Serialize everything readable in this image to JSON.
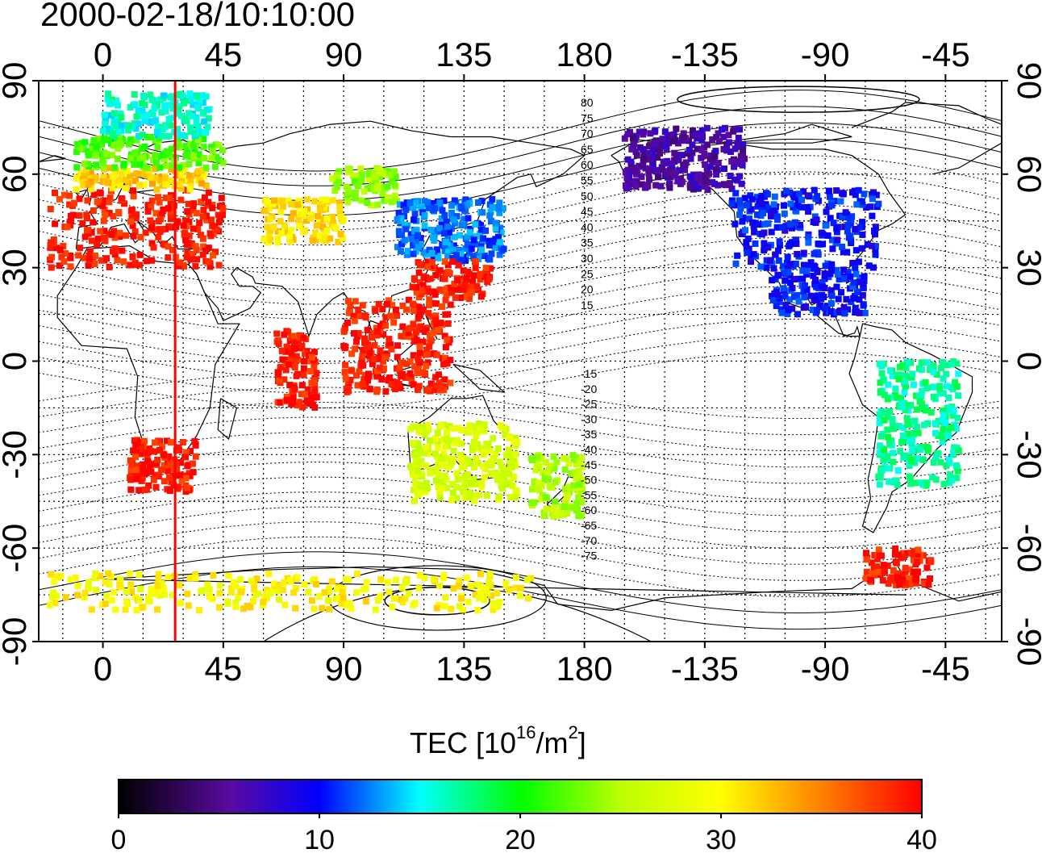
{
  "title": "2000-02-18/10:10:00",
  "map": {
    "projection": "equirectangular",
    "lon_range": [
      -24,
      336
    ],
    "lat_range": [
      -90,
      90
    ],
    "lon_ticks": [
      0,
      45,
      90,
      135,
      180,
      -135,
      -90,
      -45
    ],
    "lat_ticks": [
      90,
      60,
      30,
      0,
      -30,
      -60,
      -90
    ],
    "grid": "dotted every 15 degrees",
    "terminator_longitude": 27,
    "terminator_color": "#ff0000",
    "magnetic_contours": {
      "labels_north": [
        "80",
        "75",
        "70",
        "65",
        "60",
        "55",
        "50",
        "45",
        "40",
        "35",
        "30",
        "25",
        "20",
        "15"
      ],
      "labels_south": [
        "-15",
        "-20",
        "-25",
        "-30",
        "-35",
        "-40",
        "-45",
        "-50",
        "-55",
        "-60",
        "-65",
        "-70",
        "-75"
      ]
    }
  },
  "colorbar": {
    "label": "TEC  [10",
    "label_sup1": "16",
    "label_mid": "/m",
    "label_sup2": "2",
    "label_end": "]",
    "ticks": [
      "0",
      "10",
      "20",
      "30",
      "40"
    ],
    "range": [
      0,
      40
    ],
    "colors": [
      "#000000",
      "#5a0aa0",
      "#0000ff",
      "#00ffff",
      "#00ff00",
      "#ffff00",
      "#ff8000",
      "#ff0000"
    ]
  },
  "chart_data": {
    "type": "scatter",
    "title": "2000-02-18/10:10:00",
    "xlabel": "",
    "ylabel": "",
    "xlim": [
      -24,
      336
    ],
    "ylim": [
      -90,
      90
    ],
    "value_label": "TEC",
    "regions": [
      {
        "lon_min": -20,
        "lon_max": 45,
        "lat_min": 30,
        "lat_max": 55,
        "tec": 39
      },
      {
        "lon_min": -10,
        "lon_max": 40,
        "lat_min": 55,
        "lat_max": 62,
        "tec": 32
      },
      {
        "lon_min": -10,
        "lon_max": 45,
        "lat_min": 62,
        "lat_max": 72,
        "tec": 22
      },
      {
        "lon_min": 0,
        "lon_max": 40,
        "lat_min": 72,
        "lat_max": 86,
        "tec": 16
      },
      {
        "lon_min": 60,
        "lon_max": 90,
        "lat_min": 38,
        "lat_max": 52,
        "tec": 31
      },
      {
        "lon_min": 85,
        "lon_max": 110,
        "lat_min": 50,
        "lat_max": 62,
        "tec": 24
      },
      {
        "lon_min": 110,
        "lon_max": 150,
        "lat_min": 32,
        "lat_max": 52,
        "tec": 12
      },
      {
        "lon_min": 115,
        "lon_max": 145,
        "lat_min": 20,
        "lat_max": 32,
        "tec": 39
      },
      {
        "lon_min": 90,
        "lon_max": 130,
        "lat_min": -10,
        "lat_max": 20,
        "tec": 39
      },
      {
        "lon_min": 65,
        "lon_max": 80,
        "lat_min": -15,
        "lat_max": 10,
        "tec": 39
      },
      {
        "lon_min": 10,
        "lon_max": 35,
        "lat_min": -42,
        "lat_max": -25,
        "tec": 39
      },
      {
        "lon_min": 115,
        "lon_max": 155,
        "lat_min": -45,
        "lat_max": -20,
        "tec": 27
      },
      {
        "lon_min": 160,
        "lon_max": 180,
        "lat_min": -50,
        "lat_max": -30,
        "tec": 25
      },
      {
        "lon_min": 195,
        "lon_max": 240,
        "lat_min": 55,
        "lat_max": 75,
        "tec": 6
      },
      {
        "lon_min": 235,
        "lon_max": 290,
        "lat_min": 30,
        "lat_max": 55,
        "tec": 10
      },
      {
        "lon_min": 250,
        "lon_max": 285,
        "lat_min": 15,
        "lat_max": 30,
        "tec": 10
      },
      {
        "lon_min": 290,
        "lon_max": 320,
        "lat_min": -40,
        "lat_max": 0,
        "tec": 17
      },
      {
        "lon_min": 285,
        "lon_max": 310,
        "lat_min": -72,
        "lat_max": -60,
        "tec": 39
      },
      {
        "lon_min": -20,
        "lon_max": 160,
        "lat_min": -80,
        "lat_max": -68,
        "tec": 30
      }
    ]
  }
}
